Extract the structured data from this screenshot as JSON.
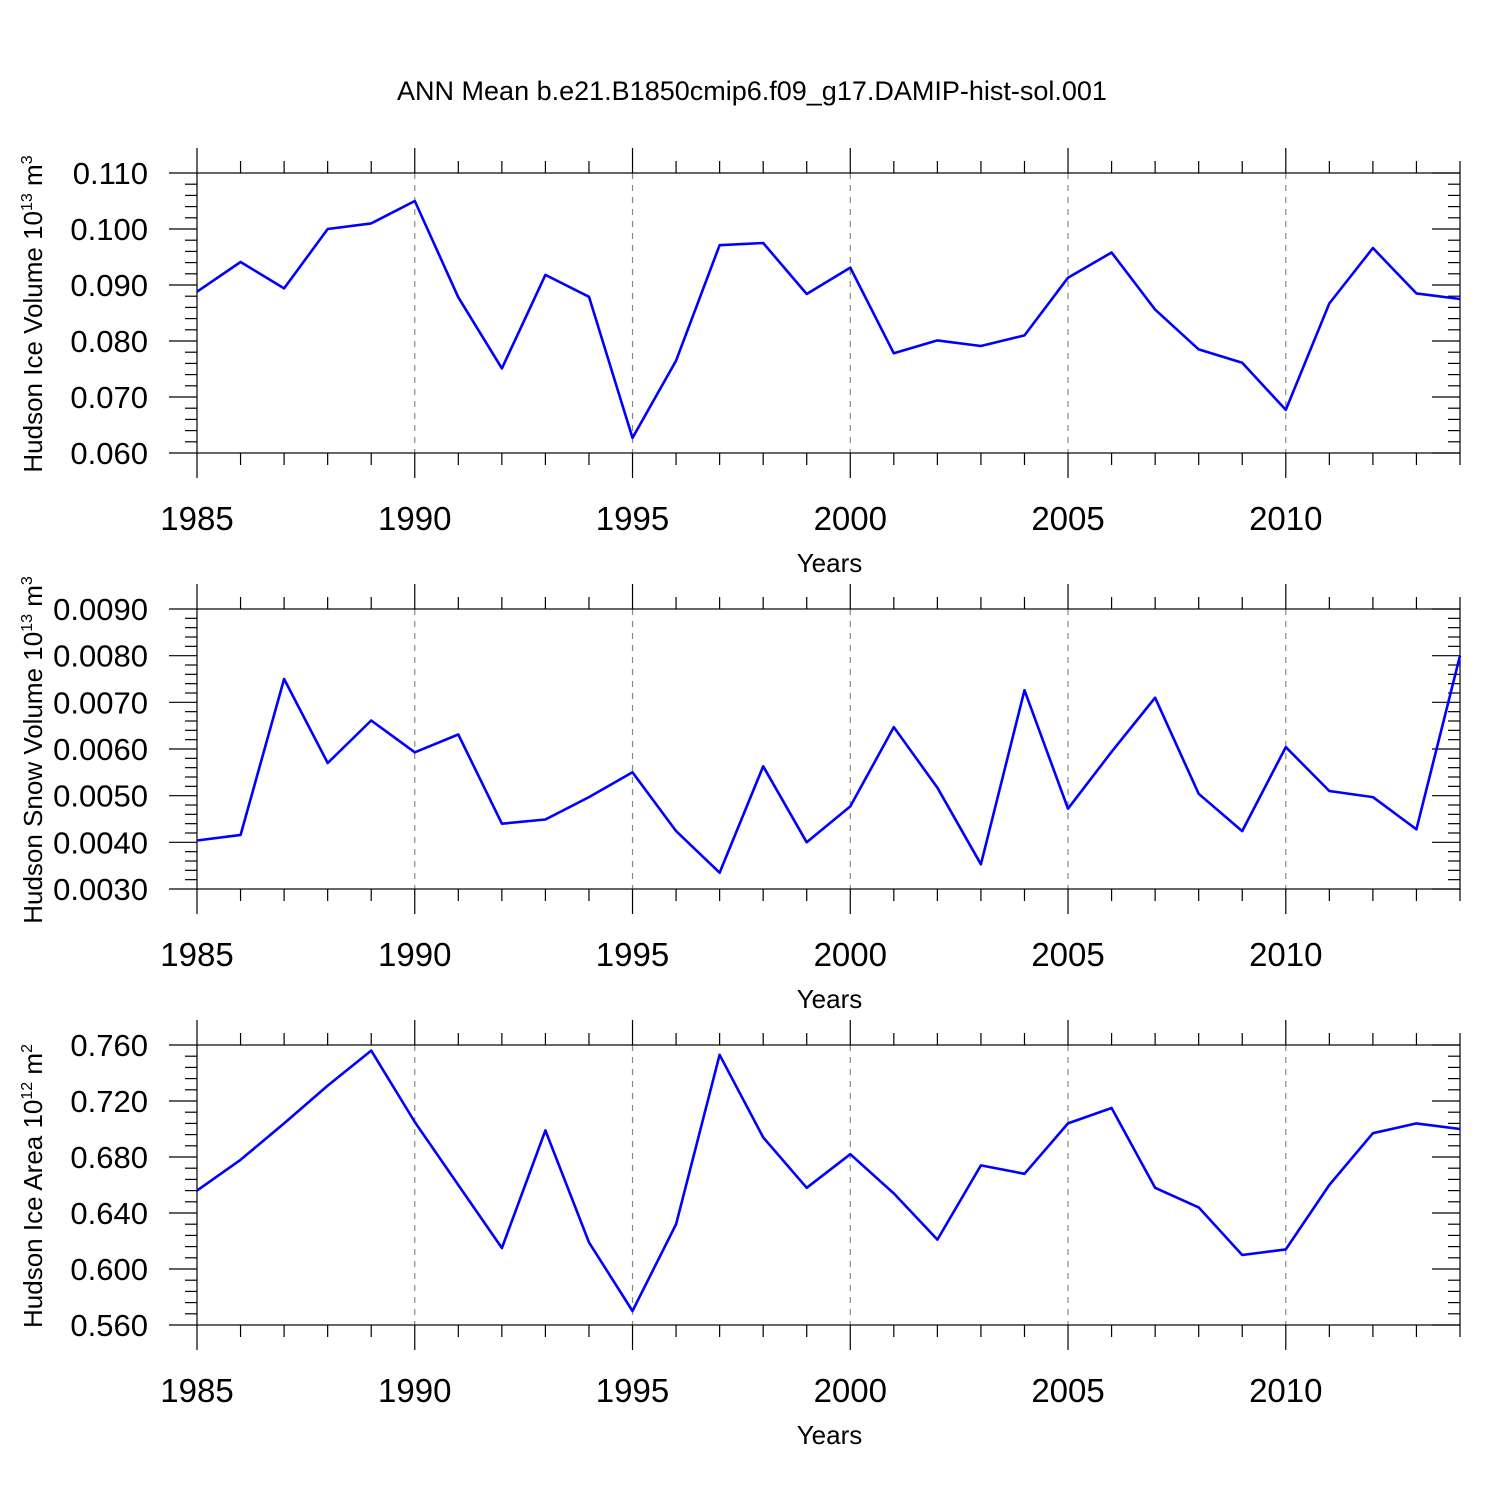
{
  "figure": {
    "title": "ANN Mean b.e21.B1850cmip6.f09_g17.DAMIP-hist-sol.001",
    "line_color": "#0000ff",
    "grid_color": "#888888"
  },
  "chart_data": [
    {
      "type": "line",
      "ylabel": {
        "main": "Hudson Ice Volume 10",
        "sup": "13",
        "unit": " m",
        "unit_sup": "3"
      },
      "xlabel": "Years",
      "xlim": [
        1985,
        2014
      ],
      "ylim": [
        0.06,
        0.11
      ],
      "x_ticks": [
        1985,
        1990,
        1995,
        2000,
        2005,
        2010
      ],
      "y_ticks": [
        "0.060",
        "0.070",
        "0.080",
        "0.090",
        "0.100",
        "0.110"
      ],
      "grid": "dashed vertical at major x ticks",
      "x": [
        1985,
        1986,
        1987,
        1988,
        1989,
        1990,
        1991,
        1992,
        1993,
        1994,
        1995,
        1996,
        1997,
        1998,
        1999,
        2000,
        2001,
        2002,
        2003,
        2004,
        2005,
        2006,
        2007,
        2008,
        2009,
        2010,
        2011,
        2012,
        2013,
        2014
      ],
      "values": [
        0.0888,
        0.0941,
        0.0894,
        0.1,
        0.101,
        0.105,
        0.0878,
        0.0751,
        0.0918,
        0.0879,
        0.0627,
        0.0765,
        0.0971,
        0.0975,
        0.0884,
        0.0931,
        0.0778,
        0.0801,
        0.0791,
        0.081,
        0.0913,
        0.0958,
        0.0856,
        0.0785,
        0.0761,
        0.0677,
        0.0867,
        0.0966,
        0.0885,
        0.0875
      ]
    },
    {
      "type": "line",
      "ylabel": {
        "main": "Hudson Snow Volume 10",
        "sup": "13",
        "unit": " m",
        "unit_sup": "3"
      },
      "xlabel": "Years",
      "xlim": [
        1985,
        2014
      ],
      "ylim": [
        0.003,
        0.009
      ],
      "x_ticks": [
        1985,
        1990,
        1995,
        2000,
        2005,
        2010
      ],
      "y_ticks": [
        "0.0030",
        "0.0040",
        "0.0050",
        "0.0060",
        "0.0070",
        "0.0080",
        "0.0090"
      ],
      "grid": "dashed vertical at major x ticks",
      "x": [
        1985,
        1986,
        1987,
        1988,
        1989,
        1990,
        1991,
        1992,
        1993,
        1994,
        1995,
        1996,
        1997,
        1998,
        1999,
        2000,
        2001,
        2002,
        2003,
        2004,
        2005,
        2006,
        2007,
        2008,
        2009,
        2010,
        2011,
        2012,
        2013,
        2014
      ],
      "values": [
        0.00404,
        0.00416,
        0.0075,
        0.0057,
        0.00661,
        0.00593,
        0.00631,
        0.0044,
        0.00449,
        0.00497,
        0.0055,
        0.00424,
        0.00335,
        0.00563,
        0.004,
        0.00477,
        0.00647,
        0.00517,
        0.00353,
        0.00726,
        0.00472,
        0.00594,
        0.0071,
        0.00504,
        0.00424,
        0.00604,
        0.0051,
        0.00497,
        0.00428,
        0.008
      ]
    },
    {
      "type": "line",
      "ylabel": {
        "main": "Hudson Ice Area 10",
        "sup": "12",
        "unit": " m",
        "unit_sup": "2"
      },
      "xlabel": "Years",
      "xlim": [
        1985,
        2014
      ],
      "ylim": [
        0.56,
        0.76
      ],
      "x_ticks": [
        1985,
        1990,
        1995,
        2000,
        2005,
        2010
      ],
      "y_ticks": [
        "0.560",
        "0.600",
        "0.640",
        "0.680",
        "0.720",
        "0.760"
      ],
      "grid": "dashed vertical at major x ticks",
      "x": [
        1985,
        1986,
        1987,
        1988,
        1989,
        1990,
        1991,
        1992,
        1993,
        1994,
        1995,
        1996,
        1997,
        1998,
        1999,
        2000,
        2001,
        2002,
        2003,
        2004,
        2005,
        2006,
        2007,
        2008,
        2009,
        2010,
        2011,
        2012,
        2013,
        2014
      ],
      "values": [
        0.656,
        0.678,
        0.704,
        0.731,
        0.756,
        0.705,
        0.66,
        0.615,
        0.699,
        0.619,
        0.57,
        0.632,
        0.753,
        0.694,
        0.658,
        0.682,
        0.654,
        0.621,
        0.674,
        0.668,
        0.704,
        0.715,
        0.658,
        0.644,
        0.61,
        0.614,
        0.66,
        0.697,
        0.704,
        0.7
      ]
    }
  ]
}
